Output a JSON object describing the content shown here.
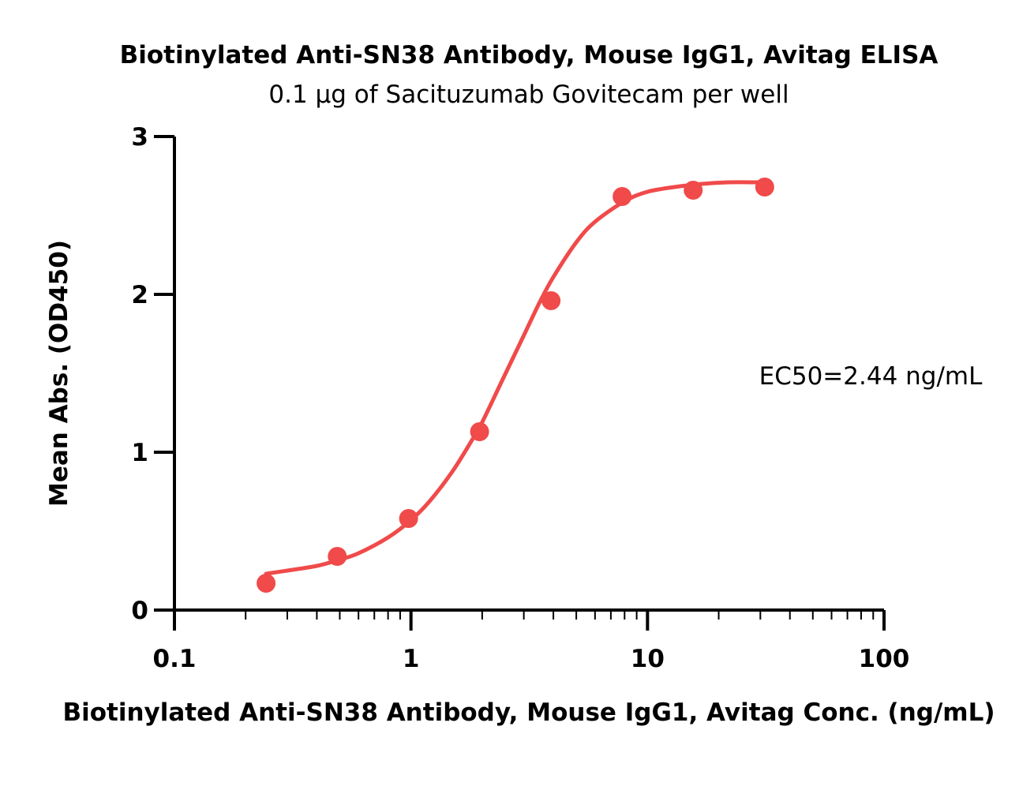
{
  "chart_data": {
    "type": "scatter",
    "title": "Biotinylated Anti-SN38 Antibody, Mouse IgG1, Avitag ELISA",
    "subtitle": "0.1 μg of Sacituzumab Govitecam per well",
    "xlabel": "Biotinylated Anti-SN38 Antibody, Mouse IgG1, Avitag Conc. (ng/mL)",
    "ylabel": "Mean Abs. (OD450)",
    "xscale": "log",
    "xlim": [
      0.1,
      100
    ],
    "ylim": [
      0,
      3
    ],
    "x_ticks": [
      "0.1",
      "1",
      "10",
      "100"
    ],
    "y_ticks": [
      "0",
      "1",
      "2",
      "3"
    ],
    "grid": false,
    "annotation": "EC50=2.44 ng/mL",
    "color": "#f04a4a",
    "series": [
      {
        "x": [
          0.244,
          0.488,
          0.977,
          1.95,
          3.91,
          7.81,
          15.6,
          31.3
        ],
        "y": [
          0.17,
          0.34,
          0.58,
          1.13,
          1.96,
          2.62,
          2.66,
          2.68
        ]
      }
    ],
    "fit_curve": {
      "x": [
        0.244,
        0.3,
        0.4,
        0.5,
        0.6,
        0.8,
        1.0,
        1.2,
        1.5,
        1.8,
        2.0,
        2.44,
        3.0,
        3.5,
        4.0,
        5.0,
        6.0,
        8.0,
        10.0,
        13.0,
        17.0,
        22.0,
        27.0,
        31.3
      ],
      "y": [
        0.23,
        0.25,
        0.28,
        0.32,
        0.36,
        0.46,
        0.57,
        0.69,
        0.88,
        1.07,
        1.19,
        1.46,
        1.74,
        1.95,
        2.11,
        2.33,
        2.46,
        2.59,
        2.65,
        2.68,
        2.7,
        2.71,
        2.71,
        2.71
      ]
    }
  }
}
